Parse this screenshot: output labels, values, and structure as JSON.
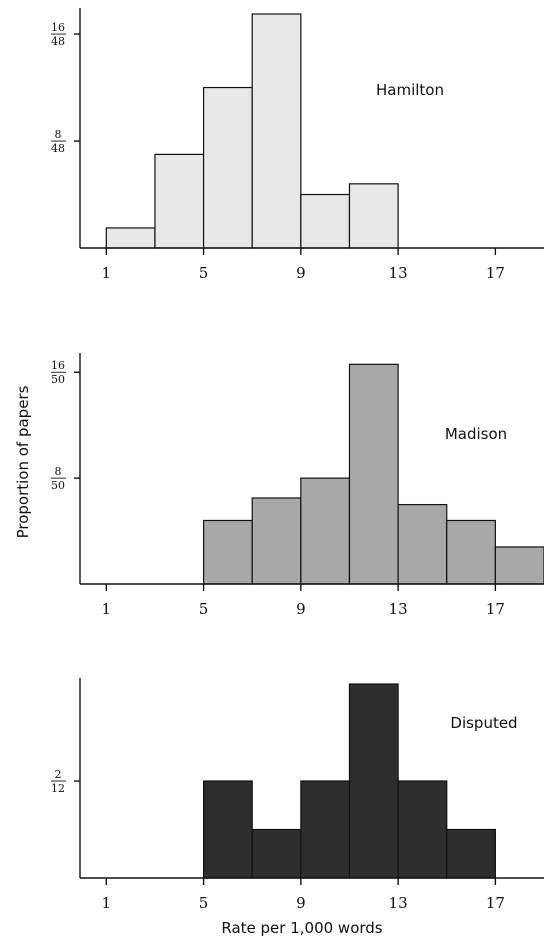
{
  "chart_data": {
    "type": "bar",
    "ylabel": "Proportion of papers",
    "xlabel": "Rate per 1,000 words",
    "x_ticks": [
      1,
      5,
      9,
      13,
      17
    ],
    "x_range": [
      0,
      19
    ],
    "bin_width": 2,
    "panels": [
      {
        "title": "Hamilton",
        "color": "#e8e8e8",
        "y_max": 17.5,
        "y_ticks": [
          {
            "value": 8,
            "num": "8",
            "den": "48"
          },
          {
            "value": 16,
            "num": "16",
            "den": "48"
          }
        ],
        "bins": [
          {
            "start": 1,
            "value": 1.5
          },
          {
            "start": 3,
            "value": 7
          },
          {
            "start": 5,
            "value": 12
          },
          {
            "start": 7,
            "value": 17.5
          },
          {
            "start": 9,
            "value": 4
          },
          {
            "start": 11,
            "value": 4.8
          }
        ]
      },
      {
        "title": "Madison",
        "color": "#a8a8a8",
        "y_max": 17,
        "y_ticks": [
          {
            "value": 8,
            "num": "8",
            "den": "50"
          },
          {
            "value": 16,
            "num": "16",
            "den": "50"
          }
        ],
        "bins": [
          {
            "start": 5,
            "value": 4.8
          },
          {
            "start": 7,
            "value": 6.5
          },
          {
            "start": 9,
            "value": 8
          },
          {
            "start": 11,
            "value": 16.6
          },
          {
            "start": 13,
            "value": 6
          },
          {
            "start": 15,
            "value": 4.8
          },
          {
            "start": 17,
            "value": 2.8
          }
        ]
      },
      {
        "title": "Disputed",
        "color": "#2e2e2e",
        "y_max": 4,
        "y_ticks": [
          {
            "value": 2,
            "num": "2",
            "den": "12"
          }
        ],
        "bins": [
          {
            "start": 5,
            "value": 2
          },
          {
            "start": 7,
            "value": 1
          },
          {
            "start": 9,
            "value": 2
          },
          {
            "start": 11,
            "value": 4
          },
          {
            "start": 13,
            "value": 2
          },
          {
            "start": 15,
            "value": 1
          }
        ]
      }
    ]
  }
}
